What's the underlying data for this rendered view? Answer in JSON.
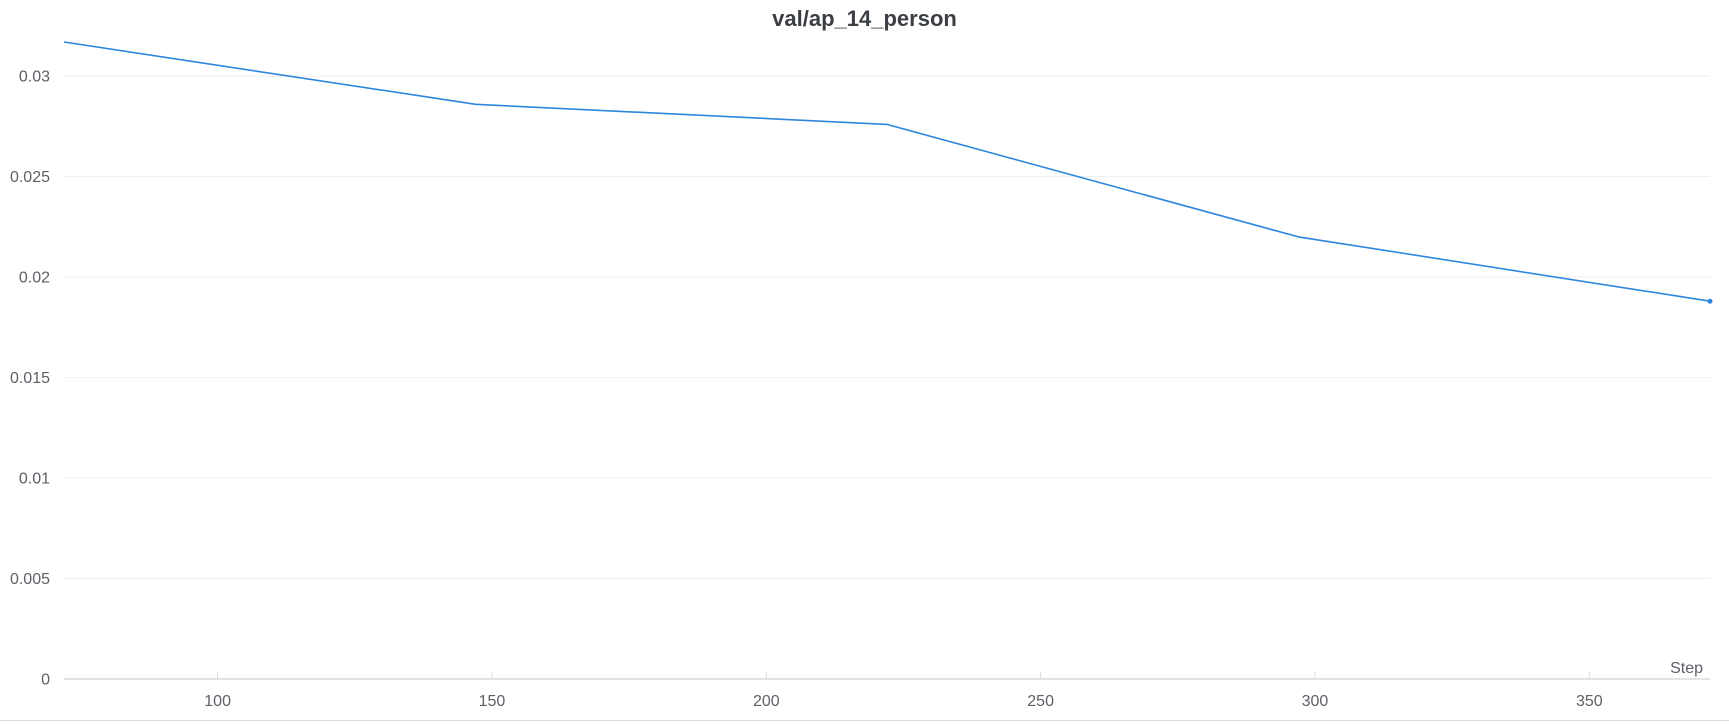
{
  "chart_data": {
    "type": "line",
    "title": "val/ap_14_person",
    "xlabel": "Step",
    "ylabel": "",
    "xlim": [
      72,
      372
    ],
    "ylim": [
      0,
      0.0317
    ],
    "x_ticks": [
      100,
      150,
      200,
      250,
      300,
      350
    ],
    "x_tick_labels": [
      "100",
      "150",
      "200",
      "250",
      "300",
      "350"
    ],
    "y_ticks": [
      0,
      0.005,
      0.01,
      0.015,
      0.02,
      0.025,
      0.03
    ],
    "y_tick_labels": [
      "0",
      "0.005",
      "0.01",
      "0.015",
      "0.02",
      "0.025",
      "0.03"
    ],
    "grid": true,
    "series": [
      {
        "color": "#2e86de",
        "x": [
          72,
          147,
          222,
          297,
          372
        ],
        "y": [
          0.0317,
          0.0286,
          0.0276,
          0.022,
          0.0188
        ]
      }
    ]
  }
}
